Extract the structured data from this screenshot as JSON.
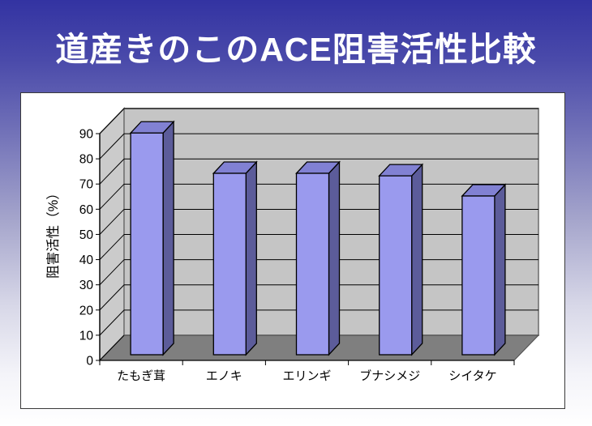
{
  "slide": {
    "title": "道産きのこのACE阻害活性比較",
    "title_color": "#ffffff",
    "background_top_color": "#3333a2",
    "background_bottom_color": "#ffffff"
  },
  "chart_data": {
    "type": "bar",
    "style": "3d-column",
    "title": "",
    "categories": [
      "たもぎ茸",
      "エノキ",
      "エリンギ",
      "ブナシメジ",
      "シイタケ"
    ],
    "values": [
      88,
      72,
      72,
      71,
      63
    ],
    "unit": "%",
    "xlabel": "",
    "ylabel": "阻害活性（%）",
    "ylim": [
      0,
      90
    ],
    "ytick_step": 10,
    "grid": true,
    "legend": false,
    "colors": {
      "bar_front": "#9a9aee",
      "bar_top": "#8181d3",
      "bar_side": "#5c5c9a",
      "back_wall": "#c5c5c5",
      "side_wall": "#cbcbcb",
      "floor": "#7f7f7f",
      "line": "#000000",
      "wall_edge": "#7d7d7d"
    }
  }
}
